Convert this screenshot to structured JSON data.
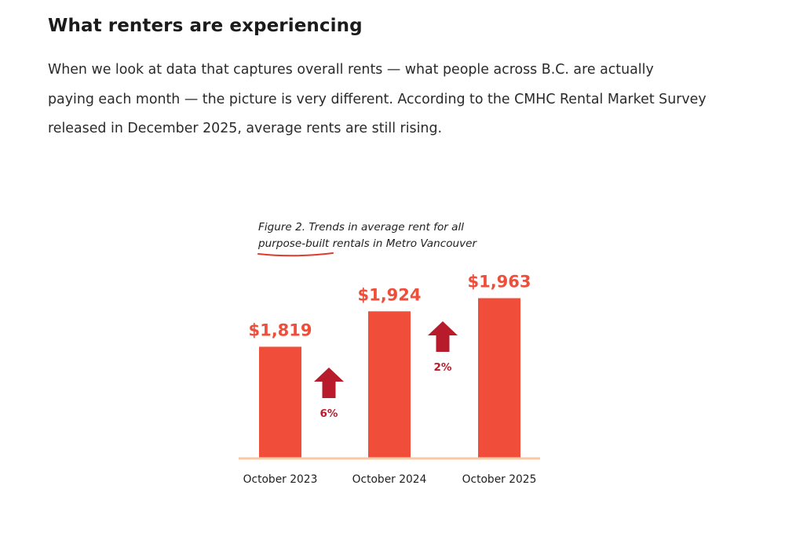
{
  "article": {
    "heading": "What renters are experiencing",
    "paragraph_lines": [
      "When we look at data that captures overall rents — what people across B.C. are actually",
      "paying each month — the picture is very different. According to the CMHC Rental Market Survey",
      "released in December 2025, average rents are still rising."
    ]
  },
  "chart_data": {
    "type": "bar",
    "title_lines": [
      "Figure 2. Trends in average rent for all",
      "purpose-built rentals in Metro Vancouver"
    ],
    "categories": [
      "October 2023",
      "October 2024",
      "October 2025"
    ],
    "values": [
      1819,
      1924,
      1963
    ],
    "value_labels": [
      "$1,819",
      "$1,924",
      "$1,963"
    ],
    "changes": [
      {
        "label": "6%",
        "direction": "up",
        "between": [
          "October 2023",
          "October 2024"
        ]
      },
      {
        "label": "2%",
        "direction": "up",
        "between": [
          "October 2024",
          "October 2025"
        ]
      }
    ],
    "xlabel": "",
    "ylabel": "",
    "grid": false,
    "legend": "none",
    "colors": {
      "bar": "#f04e3a",
      "value_label": "#ee4e3a",
      "arrow": "#b81c2c",
      "change_label": "#b81c2c",
      "baseline": "#f9c9a3",
      "caption_underline": "#e03a2f"
    }
  }
}
